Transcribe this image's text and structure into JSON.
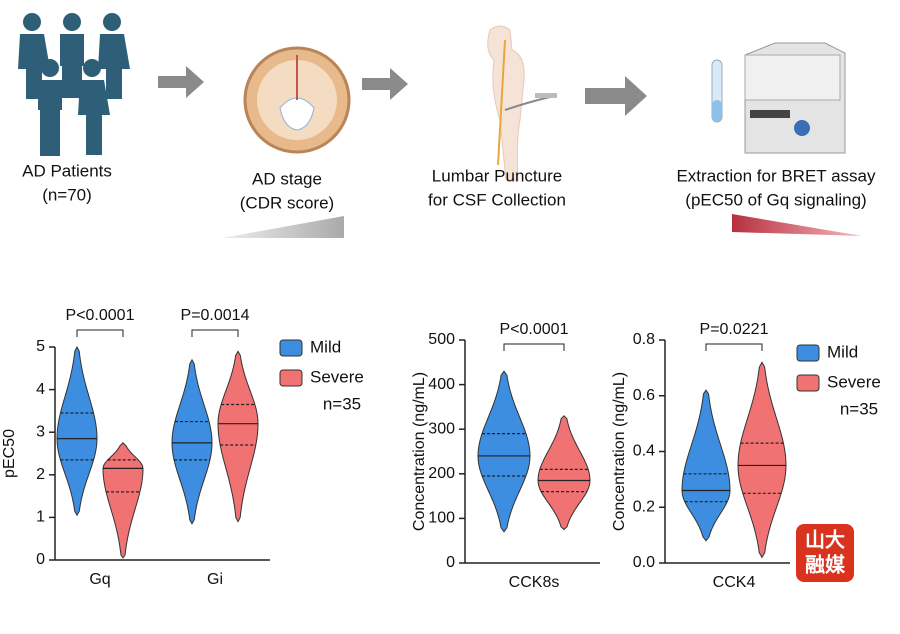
{
  "workflow": {
    "steps": [
      {
        "lines": [
          "AD Patients",
          "(n=70)"
        ]
      },
      {
        "lines": [
          "AD stage",
          "(CDR score)"
        ]
      },
      {
        "lines": [
          "Lumbar Puncture",
          "for CSF Collection"
        ]
      },
      {
        "lines": [
          "Extraction for BRET assay",
          "(pEC50 of Gq signaling)"
        ]
      }
    ]
  },
  "chart_data": [
    {
      "type": "violin",
      "ylabel": "pEC50",
      "ylim": [
        0,
        5
      ],
      "yticks": [
        0,
        1,
        2,
        3,
        4,
        5
      ],
      "categories": [
        "Gq",
        "Gi"
      ],
      "annotations": [
        "P<0.0001",
        "P=0.0014"
      ],
      "series": [
        {
          "name": "Mild",
          "color": "#3d8de0",
          "median": [
            2.85,
            2.75
          ],
          "q1": [
            2.35,
            2.35
          ],
          "q3": [
            3.45,
            3.25
          ],
          "min": [
            1.05,
            0.85
          ],
          "max": [
            5.0,
            4.7
          ]
        },
        {
          "name": "Severe",
          "color": "#f07272",
          "median": [
            2.15,
            3.2
          ],
          "q1": [
            1.6,
            2.7
          ],
          "q3": [
            2.35,
            3.65
          ],
          "min": [
            0.05,
            0.9
          ],
          "max": [
            2.75,
            4.9
          ]
        }
      ],
      "legend": true,
      "note": "n=35"
    },
    {
      "type": "violin",
      "ylabel": "Concentration (ng/mL)",
      "ylim": [
        0,
        500
      ],
      "yticks": [
        0,
        100,
        200,
        300,
        400,
        500
      ],
      "categories": [
        "CCK8s"
      ],
      "annotations": [
        "P<0.0001"
      ],
      "series": [
        {
          "color": "#3d8de0",
          "median": [
            240
          ],
          "q1": [
            195
          ],
          "q3": [
            290
          ],
          "min": [
            70
          ],
          "max": [
            430
          ]
        },
        {
          "color": "#f07272",
          "median": [
            185
          ],
          "q1": [
            160
          ],
          "q3": [
            210
          ],
          "min": [
            75
          ],
          "max": [
            330
          ]
        }
      ],
      "legend": false
    },
    {
      "type": "violin",
      "ylabel": "Concentration (ng/mL)",
      "ylim": [
        0,
        0.8
      ],
      "yticks": [
        {
          "value": 0,
          "label": "0.0"
        },
        0.2,
        0.4,
        0.6,
        0.8
      ],
      "categories": [
        "CCK4"
      ],
      "annotations": [
        "P=0.0221"
      ],
      "series": [
        {
          "name": "Mild",
          "color": "#3d8de0",
          "median": [
            0.26
          ],
          "q1": [
            0.22
          ],
          "q3": [
            0.32
          ],
          "min": [
            0.08
          ],
          "max": [
            0.62
          ]
        },
        {
          "name": "Severe",
          "color": "#f07272",
          "median": [
            0.35
          ],
          "q1": [
            0.25
          ],
          "q3": [
            0.43
          ],
          "min": [
            0.02
          ],
          "max": [
            0.72
          ]
        }
      ],
      "legend": true,
      "note": "n=35"
    }
  ],
  "watermark": [
    "山大",
    "融媒"
  ]
}
